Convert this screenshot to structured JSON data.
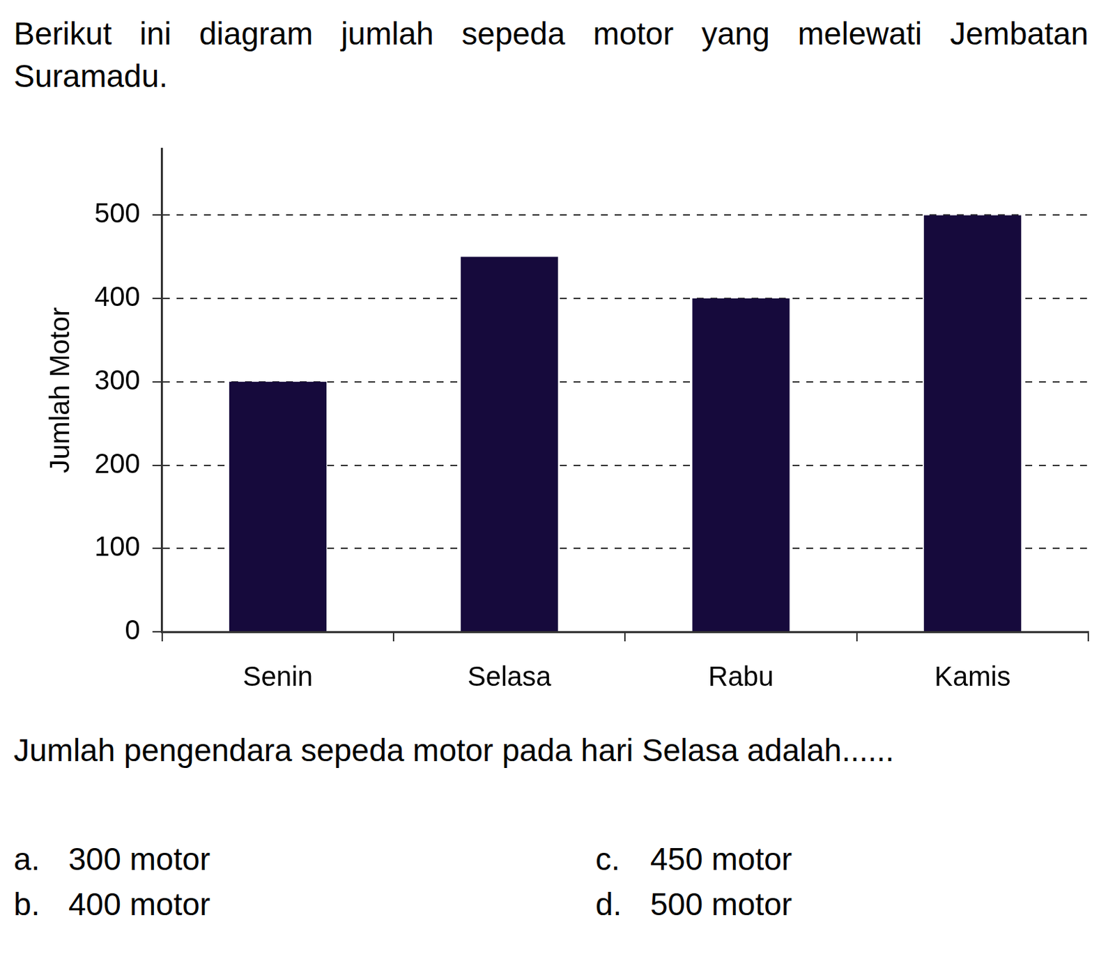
{
  "chart_data": {
    "type": "bar",
    "categories": [
      "Senin",
      "Selasa",
      "Rabu",
      "Kamis"
    ],
    "values": [
      300,
      450,
      400,
      500
    ],
    "color": "#160a3c",
    "y_label": "Jumlah Motor",
    "ylim": [
      0,
      580
    ],
    "yticks": [
      0,
      100,
      200,
      300,
      400,
      500
    ],
    "grid": true
  },
  "intro": "Berikut ini diagram jumlah sepeda motor yang melewati Jembatan Suramadu.",
  "question": "Jumlah pengendara sepeda motor pada hari Selasa adalah......",
  "options": [
    {
      "letter": "a.",
      "text": "300 motor"
    },
    {
      "letter": "c.",
      "text": "450 motor"
    },
    {
      "letter": "b.",
      "text": "400 motor"
    },
    {
      "letter": "d.",
      "text": "500 motor"
    }
  ]
}
